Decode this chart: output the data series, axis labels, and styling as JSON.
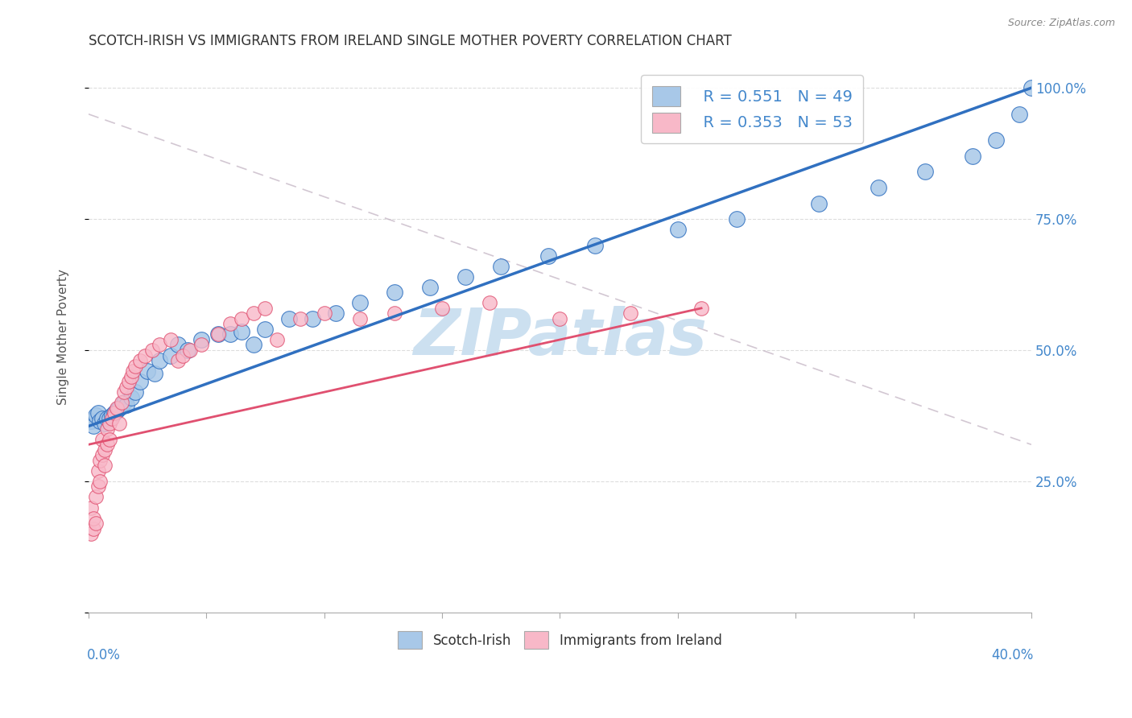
{
  "title": "SCOTCH-IRISH VS IMMIGRANTS FROM IRELAND SINGLE MOTHER POVERTY CORRELATION CHART",
  "source": "Source: ZipAtlas.com",
  "ylabel": "Single Mother Poverty",
  "right_yticklabels": [
    "",
    "25.0%",
    "50.0%",
    "75.0%",
    "100.0%"
  ],
  "xmin": 0.0,
  "xmax": 0.4,
  "ymin": 0.0,
  "ymax": 1.05,
  "scotch_irish_R": 0.551,
  "scotch_irish_N": 49,
  "immigrants_R": 0.353,
  "immigrants_N": 53,
  "scotch_irish_color": "#a8c8e8",
  "immigrants_color": "#f8b8c8",
  "trendline_scotch_color": "#3070c0",
  "trendline_immigrants_color": "#e05070",
  "dashed_line_color": "#d0a0b0",
  "watermark": "ZIPatlas",
  "watermark_color": "#cce0f0",
  "grid_color": "#dddddd",
  "background_color": "#ffffff",
  "title_color": "#333333",
  "axis_label_color": "#4488cc",
  "scotch_irish_x": [
    0.001,
    0.002,
    0.003,
    0.004,
    0.005,
    0.006,
    0.007,
    0.008,
    0.009,
    0.01,
    0.011,
    0.012,
    0.013,
    0.015,
    0.016,
    0.018,
    0.02,
    0.022,
    0.025,
    0.028,
    0.03,
    0.035,
    0.038,
    0.042,
    0.048,
    0.055,
    0.06,
    0.065,
    0.07,
    0.075,
    0.085,
    0.095,
    0.105,
    0.115,
    0.13,
    0.145,
    0.16,
    0.175,
    0.195,
    0.215,
    0.25,
    0.275,
    0.31,
    0.335,
    0.355,
    0.375,
    0.385,
    0.395,
    0.4
  ],
  "scotch_irish_y": [
    0.365,
    0.355,
    0.375,
    0.38,
    0.365,
    0.37,
    0.36,
    0.37,
    0.37,
    0.375,
    0.38,
    0.385,
    0.39,
    0.4,
    0.395,
    0.41,
    0.42,
    0.44,
    0.46,
    0.455,
    0.48,
    0.49,
    0.51,
    0.5,
    0.52,
    0.53,
    0.53,
    0.535,
    0.51,
    0.54,
    0.56,
    0.56,
    0.57,
    0.59,
    0.61,
    0.62,
    0.64,
    0.66,
    0.68,
    0.7,
    0.73,
    0.75,
    0.78,
    0.81,
    0.84,
    0.87,
    0.9,
    0.95,
    1.0
  ],
  "immigrants_x": [
    0.001,
    0.001,
    0.002,
    0.002,
    0.003,
    0.003,
    0.004,
    0.004,
    0.005,
    0.005,
    0.006,
    0.006,
    0.007,
    0.007,
    0.008,
    0.008,
    0.009,
    0.009,
    0.01,
    0.011,
    0.012,
    0.013,
    0.014,
    0.015,
    0.016,
    0.017,
    0.018,
    0.019,
    0.02,
    0.022,
    0.024,
    0.027,
    0.03,
    0.035,
    0.038,
    0.04,
    0.043,
    0.048,
    0.055,
    0.06,
    0.065,
    0.07,
    0.075,
    0.08,
    0.09,
    0.1,
    0.115,
    0.13,
    0.15,
    0.17,
    0.2,
    0.23,
    0.26
  ],
  "immigrants_y": [
    0.2,
    0.15,
    0.16,
    0.18,
    0.17,
    0.22,
    0.24,
    0.27,
    0.25,
    0.29,
    0.3,
    0.33,
    0.28,
    0.31,
    0.32,
    0.35,
    0.36,
    0.33,
    0.37,
    0.38,
    0.39,
    0.36,
    0.4,
    0.42,
    0.43,
    0.44,
    0.45,
    0.46,
    0.47,
    0.48,
    0.49,
    0.5,
    0.51,
    0.52,
    0.48,
    0.49,
    0.5,
    0.51,
    0.53,
    0.55,
    0.56,
    0.57,
    0.58,
    0.52,
    0.56,
    0.57,
    0.56,
    0.57,
    0.58,
    0.59,
    0.56,
    0.57,
    0.58
  ],
  "trendline_scotch_x0": 0.0,
  "trendline_scotch_y0": 0.355,
  "trendline_scotch_x1": 0.4,
  "trendline_scotch_y1": 1.0,
  "trendline_immigrants_x0": 0.0,
  "trendline_immigrants_y0": 0.32,
  "trendline_immigrants_x1": 0.26,
  "trendline_immigrants_y1": 0.58,
  "dashed_line_x0": 0.0,
  "dashed_line_y0": 0.95,
  "dashed_line_x1": 0.4,
  "dashed_line_y1": 0.32
}
